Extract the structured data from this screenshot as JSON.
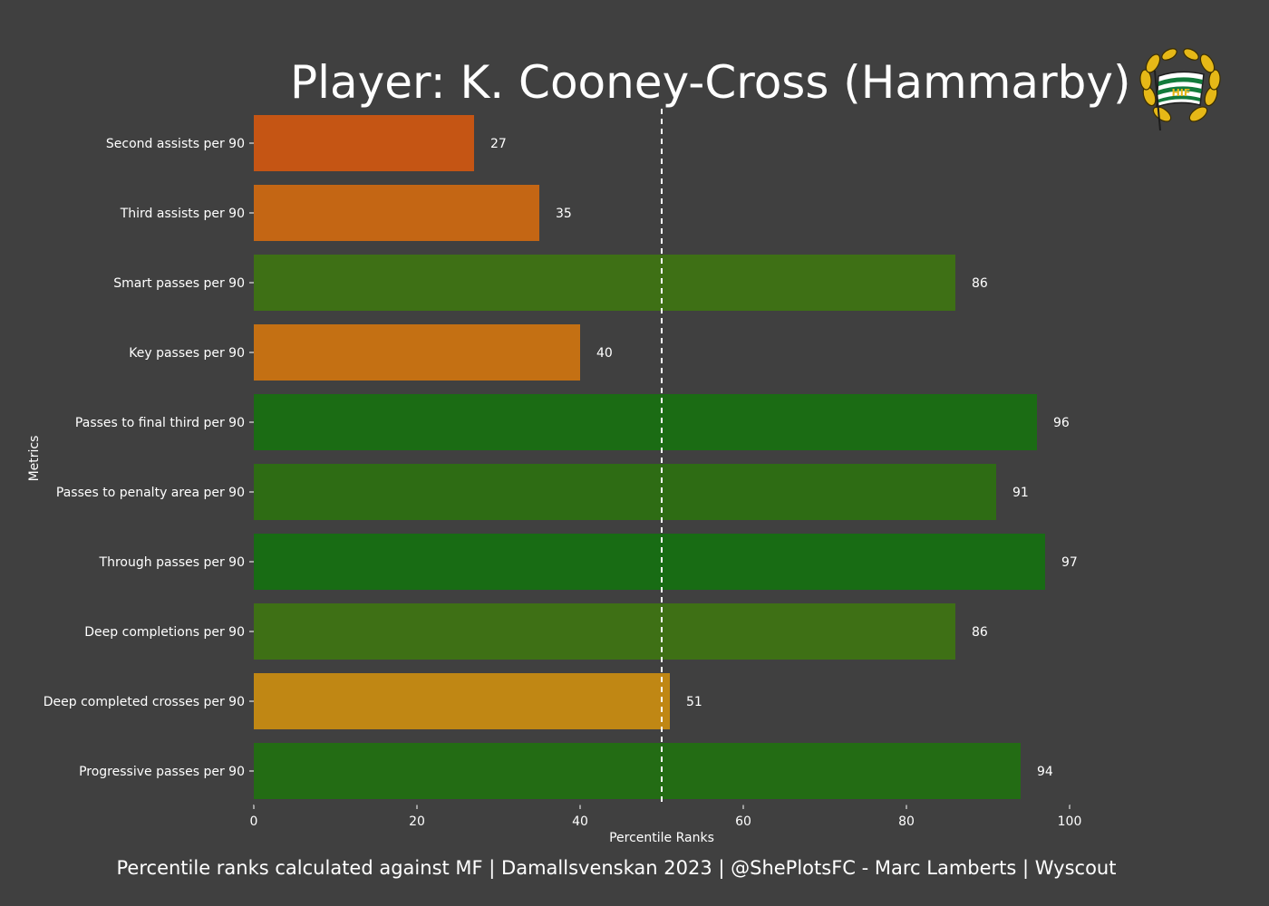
{
  "title": "Player: K. Cooney-Cross (Hammarby)",
  "footer": "Percentile ranks calculated against MF | Damallsvenskan 2023 | @ShePlotsFC - Marc Lamberts | Wyscout",
  "logo": {
    "icon": "hammarby-crest-icon",
    "letters": "HIF"
  },
  "chart_data": {
    "type": "bar",
    "orientation": "horizontal",
    "ylabel": "Metrics",
    "xlabel": "Percentile Ranks",
    "xlim": [
      0,
      100
    ],
    "xticks": [
      0,
      20,
      40,
      60,
      80,
      100
    ],
    "reference_line": {
      "x": 50,
      "style": "dashed"
    },
    "grid": false,
    "categories": [
      "Second assists per 90",
      "Third assists per 90",
      "Smart passes per 90",
      "Key passes per 90",
      "Passes to final third per 90",
      "Passes to penalty area per 90",
      "Through passes per 90",
      "Deep completions per 90",
      "Deep completed crosses per 90",
      "Progressive passes per 90"
    ],
    "values": [
      27,
      35,
      86,
      40,
      96,
      91,
      97,
      86,
      51,
      94
    ],
    "colors": [
      "#c55514",
      "#c46614",
      "#3e7015",
      "#c47013",
      "#1b6c14",
      "#2e6c14",
      "#186c14",
      "#3e7015",
      "#c08714",
      "#236c14"
    ]
  }
}
